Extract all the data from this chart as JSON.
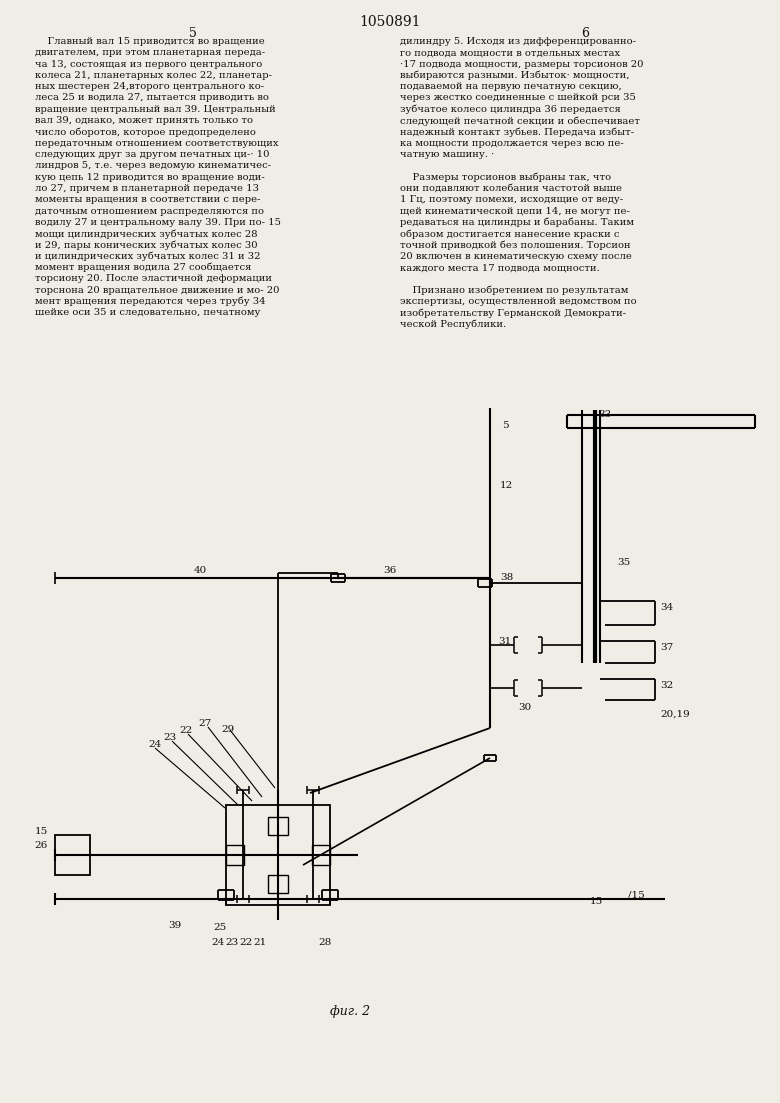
{
  "title": "1050891",
  "page_left": "5",
  "page_right": "6",
  "fig_caption": "фиг. 2",
  "bg_color": "#f0ede6",
  "text_color": "#111111",
  "line_color": "#000000",
  "font_size_text": 7.2,
  "font_size_title": 10,
  "font_size_labels": 7.5,
  "text_left_lines": [
    "    Главный вал 15 приводится во вращение",
    "двигателем, при этом планетарная переда-",
    "ча 13, состоящая из первого центрального",
    "колеса 21, планетарных колес 22, планетар-",
    "ных шестерен 24,второго центрального ко-",
    "леса 25 и водила 27, пытается приводить во",
    "вращение центральный вал 39. Центральный",
    "вал 39, однако, может принять только то",
    "число оборотов, которое предопределено",
    "передаточным отношением соответствующих",
    "следующих друг за другом печатных ци-· 10",
    "линдров 5, т.е. через ведомую кинематичес-",
    "кую цепь 12 приводится во вращение води-",
    "ло 27, причем в планетарной передаче 13",
    "моменты вращения в соответствии с пере-",
    "даточным отношением распределяются по",
    "водилу 27 и центральному валу 39. При по- 15",
    "мощи цилиндрических зубчатых колес 28",
    "и 29, пары конических зубчатых колес 30",
    "и цилиндрических зубчатых колес 31 и 32",
    "момент вращения водила 27 сообщается",
    "торсиону 20. После эластичной деформации",
    "торснона 20 вращательное движение и мо- 20",
    "мент вращения передаются через трубу 34",
    "шейке оси 35 и следовательно, печатному"
  ],
  "text_right_lines": [
    "дилиндру 5. Исходя из дифференцированно-",
    "го подвода мощности в отдельных местах",
    "·17 подвода мощности, размеры торсионов 20",
    "выбираются разными. Избыток· мощности,",
    "подаваемой на первую печатную секцию,",
    "через жестко соединенные с шейкой рси 35",
    "зубчатое колесо цилиндра 36 передается",
    "следующей печатной секции и обеспечивает",
    "надежный контакт зубьев. Передача избыт-",
    "ка мощности продолжается через всю пе-",
    "чатную машину. ·",
    "",
    "    Размеры торсионов выбраны так, что",
    "они подавляют колебания частотой выше",
    "1 Гц, поэтому помехи, исходящие от веду-",
    "щей кинематической цепи 14, не могут пе-",
    "редаваться на цилиндры и барабаны. Таким",
    "образом достигается нанесение краски с",
    "точной приводкой без полошения. Торсион",
    "20 включен в кинематическую схему после",
    "каждого места 17 подвода мощности.",
    "",
    "    Признано изобретением по результатам",
    "экспертизы, осуществленной ведомством по",
    "изобретательству Германской Демократи-",
    "ческой Республики."
  ]
}
